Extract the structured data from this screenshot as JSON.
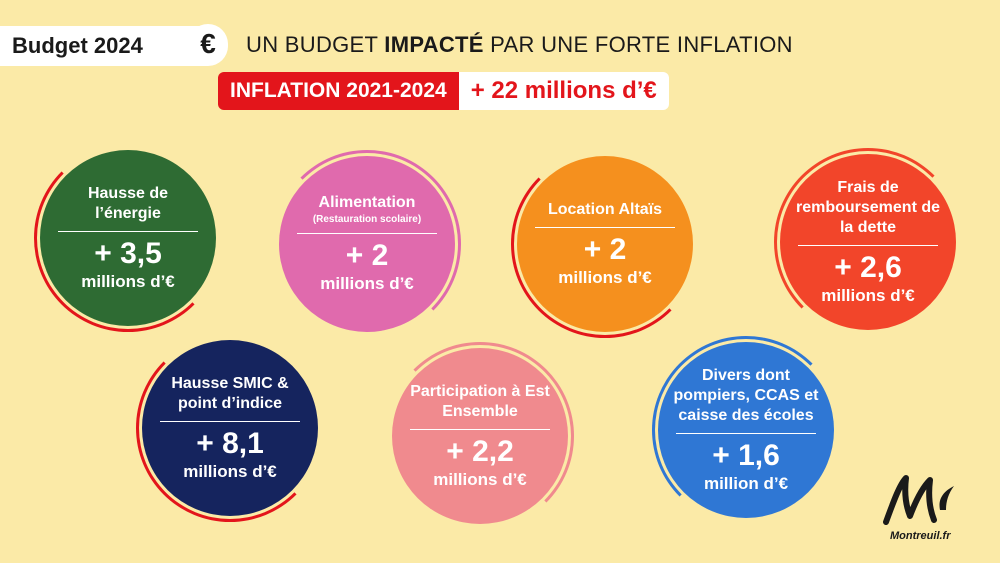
{
  "header": {
    "badge": "Budget 2024",
    "euro": "€",
    "headline_pre": "UN BUDGET ",
    "headline_bold": "IMPACTÉ",
    "headline_post": " PAR UNE FORTE INFLATION",
    "inflation_label": "INFLATION 2021-2024",
    "inflation_value": "+ 22 millions d’€"
  },
  "bubbles": [
    {
      "title": "Hausse de l’énergie",
      "sub": "",
      "amount": "+ 3,5",
      "unit": "millions d’€",
      "color": "#2e6b33"
    },
    {
      "title": "Alimentation",
      "sub": "(Restauration scolaire)",
      "amount": "+ 2",
      "unit": "millions d’€",
      "color": "#e06aad"
    },
    {
      "title": "Location Altaïs",
      "sub": "",
      "amount": "+ 2",
      "unit": "millions d’€",
      "color": "#f5901e"
    },
    {
      "title": "Frais de remboursement de la dette",
      "sub": "",
      "amount": "+ 2,6",
      "unit": "millions d’€",
      "color": "#f2452a"
    },
    {
      "title": "Hausse SMIC & point d’indice",
      "sub": "",
      "amount": "+ 8,1",
      "unit": "millions d’€",
      "color": "#15245e"
    },
    {
      "title": "Participation à Est Ensemble",
      "sub": "",
      "amount": "+ 2,2",
      "unit": "millions d’€",
      "color": "#f08a8e"
    },
    {
      "title": "Divers dont pompiers, CCAS et caisse des écoles",
      "sub": "",
      "amount": "+ 1,6",
      "unit": "million d’€",
      "color": "#2f77d4"
    }
  ],
  "logo": {
    "url": "Montreuil.fr"
  }
}
